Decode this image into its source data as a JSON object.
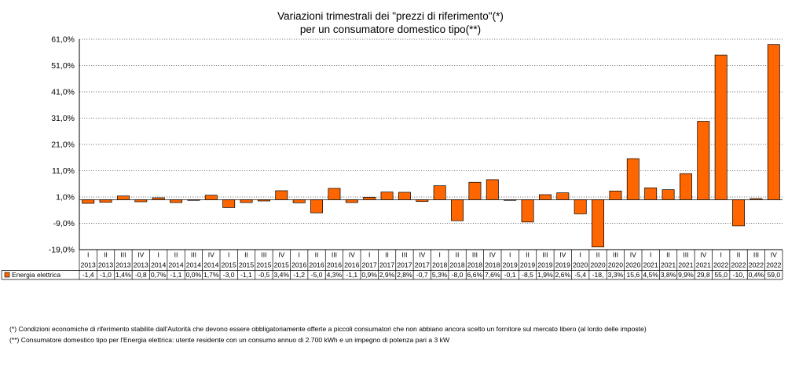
{
  "chart_data": {
    "type": "bar",
    "title_lines": [
      "Variazioni trimestrali dei \"prezzi di riferimento\"(*)",
      "per un consumatore domestico tipo(**)"
    ],
    "ylim": [
      -19,
      61
    ],
    "yticks": [
      "61,0%",
      "51,0%",
      "41,0%",
      "31,0%",
      "21,0%",
      "11,0%",
      "1,0%",
      "-9,0%",
      "-19,0%"
    ],
    "ytick_values": [
      61,
      51,
      41,
      31,
      21,
      11,
      1,
      -9,
      -19
    ],
    "baseline": 0,
    "grid": "horizontal dotted",
    "bar_color": "#ff6600",
    "quarters": [
      "I",
      "II",
      "III",
      "IV",
      "I",
      "II",
      "III",
      "IV",
      "I",
      "II",
      "III",
      "IV",
      "I",
      "II",
      "III",
      "IV",
      "I",
      "II",
      "III",
      "IV",
      "I",
      "II",
      "III",
      "IV",
      "I",
      "II",
      "III",
      "IV",
      "I",
      "II",
      "III",
      "IV",
      "I",
      "II",
      "III",
      "IV",
      "I",
      "II",
      "III",
      "IV"
    ],
    "years": [
      "2013",
      "2013",
      "2013",
      "2013",
      "2014",
      "2014",
      "2014",
      "2014",
      "2015",
      "2015",
      "2015",
      "2015",
      "2016",
      "2016",
      "2016",
      "2016",
      "2017",
      "2017",
      "2017",
      "2017",
      "2018",
      "2018",
      "2018",
      "2018",
      "2019",
      "2019",
      "2019",
      "2019",
      "2020",
      "2020",
      "2020",
      "2020",
      "2021",
      "2021",
      "2021",
      "2021",
      "2022",
      "2022",
      "2022",
      "2022"
    ],
    "series": [
      {
        "name": "Energia elettrica",
        "values": [
          -1.4,
          -1.0,
          1.4,
          -0.8,
          0.7,
          -1.1,
          0.0,
          1.7,
          -3.0,
          -1.1,
          -0.5,
          3.4,
          -1.2,
          -5.0,
          4.3,
          -1.1,
          0.9,
          2.9,
          2.8,
          -0.7,
          5.3,
          -8.0,
          6.6,
          7.6,
          -0.1,
          -8.5,
          1.9,
          2.6,
          -5.4,
          -18.0,
          3.3,
          15.6,
          4.5,
          3.8,
          9.9,
          29.8,
          55.0,
          -10.0,
          0.4,
          59.0
        ],
        "labels": [
          "-1,4",
          "-1,0",
          "1,4%",
          "-0,8",
          "0,7%",
          "-1,1",
          "0,0%",
          "1,7%",
          "-3,0",
          "-1,1",
          "-0,5",
          "3,4%",
          "-1,2",
          "-5,0",
          "4,3%",
          "-1,1",
          "0,9%",
          "2,9%",
          "2,8%",
          "-0,7",
          "5,3%",
          "-8,0",
          "6,6%",
          "7,6%",
          "-0,1",
          "-8,5",
          "1,9%",
          "2,6%",
          "-5,4",
          "-18,",
          "3,3%",
          "15,6",
          "4,5%",
          "3,8%",
          "9,9%",
          "29,8",
          "55,0",
          "-10,",
          "0,4%",
          "59,0"
        ]
      }
    ]
  },
  "footnotes": [
    "(*) Condizioni economiche di riferimento stabilite dall'Autorità che devono essere obbligatoriamente offerte a piccoli consumatori che non abbiano ancora scelto un fornitore sul mercato libero (al lordo delle imposte)",
    "(**) Consumatore domestico tipo per l'Energia elettrica: utente residente con un consumo annuo di 2.700 kWh e un impegno di potenza pari a 3 kW"
  ]
}
